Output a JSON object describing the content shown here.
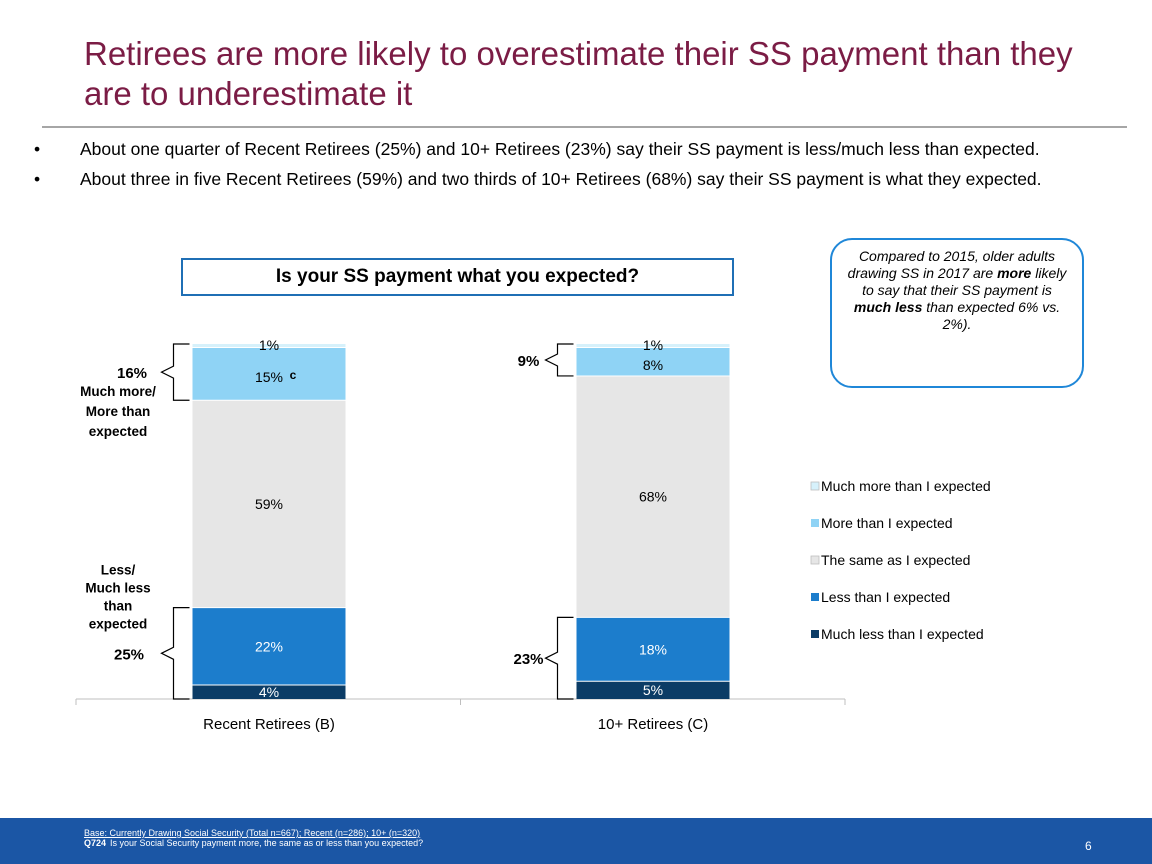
{
  "title": "Retirees are more likely to overestimate their SS payment than they are to underestimate it",
  "bullets": [
    "About one quarter of Recent Retirees (25%) and 10+ Retirees (23%) say their SS payment is less/much less than expected.",
    "About three in five Recent Retirees (59%) and two thirds of 10+ Retirees (68%) say their SS payment is what they expected."
  ],
  "bullet_symbol": "•",
  "callout": {
    "part1": "Compared to 2015, older adults drawing SS in 2017 are ",
    "bold1": "more",
    "part2": " likely to say that their SS payment is ",
    "bold2": "much less",
    "part3": " than expected 6% vs. 2%)."
  },
  "footer": {
    "base": "Base: Currently Drawing Social Security (Total n=667); Recent (n=286); 10+ (n=320)",
    "q_code": "Q724",
    "q_text": "Is your Social Security payment more, the same as or less than you expected?",
    "page": "6"
  },
  "chart_data": {
    "type": "bar",
    "stacked": true,
    "title": "Is your SS payment what you expected?",
    "categories": [
      "Recent Retirees (B)",
      "10+ Retirees (C)"
    ],
    "series": [
      {
        "name": "Much less than I expected",
        "values": [
          4,
          5
        ],
        "labels": [
          "4%",
          "5%"
        ],
        "color": "#0b3c66",
        "label_color": "#ffffff"
      },
      {
        "name": "Less than I expected",
        "values": [
          22,
          18
        ],
        "labels": [
          "22%",
          "18%"
        ],
        "color": "#1c7dcc",
        "label_color": "#ffffff"
      },
      {
        "name": "The same as I expected",
        "values": [
          59,
          68
        ],
        "labels": [
          "59%",
          "68%"
        ],
        "color": "#e6e6e6",
        "label_color": "#000000"
      },
      {
        "name": "More than I expected",
        "values": [
          15,
          8
        ],
        "labels": [
          "15%",
          "8%"
        ],
        "color": "#8fd3f5",
        "label_color": "#000000"
      },
      {
        "name": "Much more than I expected",
        "values": [
          1,
          1
        ],
        "labels": [
          "1%",
          "1%"
        ],
        "color": "#d6f1fb",
        "label_color": "#000000"
      }
    ],
    "significance": [
      {
        "category": 0,
        "series": 3,
        "mark": "c"
      }
    ],
    "legend_order": [
      "Much more than I expected",
      "More than I expected",
      "The same as I expected",
      "Less than I expected",
      "Much less than I expected"
    ],
    "legend_position": "right",
    "brackets": [
      {
        "category": 0,
        "from_series": 3,
        "to_series": 4,
        "side": "left",
        "lines": [
          "16%",
          "Much more/",
          "More than",
          "expected"
        ]
      },
      {
        "category": 0,
        "from_series": 0,
        "to_series": 1,
        "side": "left",
        "lines": [
          "Less/",
          "Much less",
          "than",
          "expected",
          "25%"
        ]
      },
      {
        "category": 1,
        "from_series": 3,
        "to_series": 4,
        "side": "left",
        "lines": [
          "9%"
        ]
      },
      {
        "category": 1,
        "from_series": 0,
        "to_series": 1,
        "side": "left",
        "lines": [
          "23%"
        ]
      }
    ]
  }
}
